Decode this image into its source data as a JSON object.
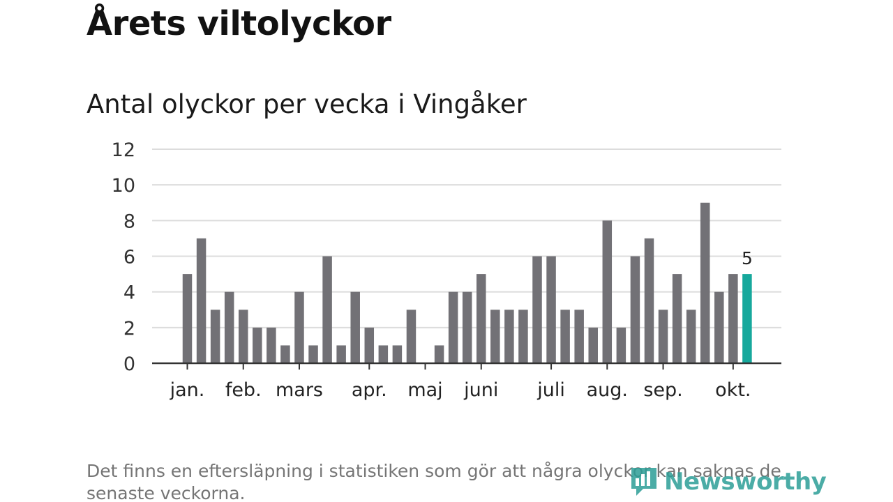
{
  "header": {
    "title": "Årets viltolyckor",
    "subtitle": "Antal olyckor per vecka i Vingåker"
  },
  "footnote": "Det finns en eftersläpning i statistiken som gör att några olyckor kan saknas de senaste veckorna.",
  "logo": {
    "text": "Newsworthy",
    "color": "#2c9e97"
  },
  "chart_data": {
    "type": "bar",
    "title": "Antal olyckor per vecka i Vingåker",
    "xlabel": "",
    "ylabel": "",
    "ylim": [
      0,
      12
    ],
    "yticks": [
      0,
      2,
      4,
      6,
      8,
      10,
      12
    ],
    "grid": true,
    "weeks": [
      1,
      2,
      3,
      4,
      5,
      6,
      7,
      8,
      9,
      10,
      11,
      12,
      13,
      14,
      15,
      16,
      17,
      18,
      19,
      20,
      21,
      22,
      23,
      24,
      25,
      26,
      27,
      28,
      29,
      30,
      31,
      32,
      33,
      34,
      35,
      36,
      37,
      38,
      39,
      40,
      41
    ],
    "values": [
      5,
      7,
      3,
      4,
      3,
      2,
      2,
      1,
      4,
      1,
      6,
      1,
      4,
      2,
      1,
      1,
      3,
      0,
      1,
      4,
      4,
      5,
      3,
      3,
      3,
      6,
      6,
      3,
      3,
      2,
      8,
      2,
      6,
      7,
      3,
      5,
      3,
      9,
      4,
      5,
      5
    ],
    "month_labels": [
      {
        "label": "jan.",
        "week": 1
      },
      {
        "label": "feb.",
        "week": 5
      },
      {
        "label": "mars",
        "week": 9
      },
      {
        "label": "apr.",
        "week": 14
      },
      {
        "label": "maj",
        "week": 18
      },
      {
        "label": "juni",
        "week": 22
      },
      {
        "label": "juli",
        "week": 27
      },
      {
        "label": "aug.",
        "week": 31
      },
      {
        "label": "sep.",
        "week": 35
      },
      {
        "label": "okt.",
        "week": 40
      }
    ],
    "highlight": {
      "week": 41,
      "value": 5,
      "label": "5"
    },
    "colors": {
      "bar": "#727176",
      "highlight": "#16a89c",
      "grid": "#dcdcdc",
      "axis": "#333333"
    }
  }
}
